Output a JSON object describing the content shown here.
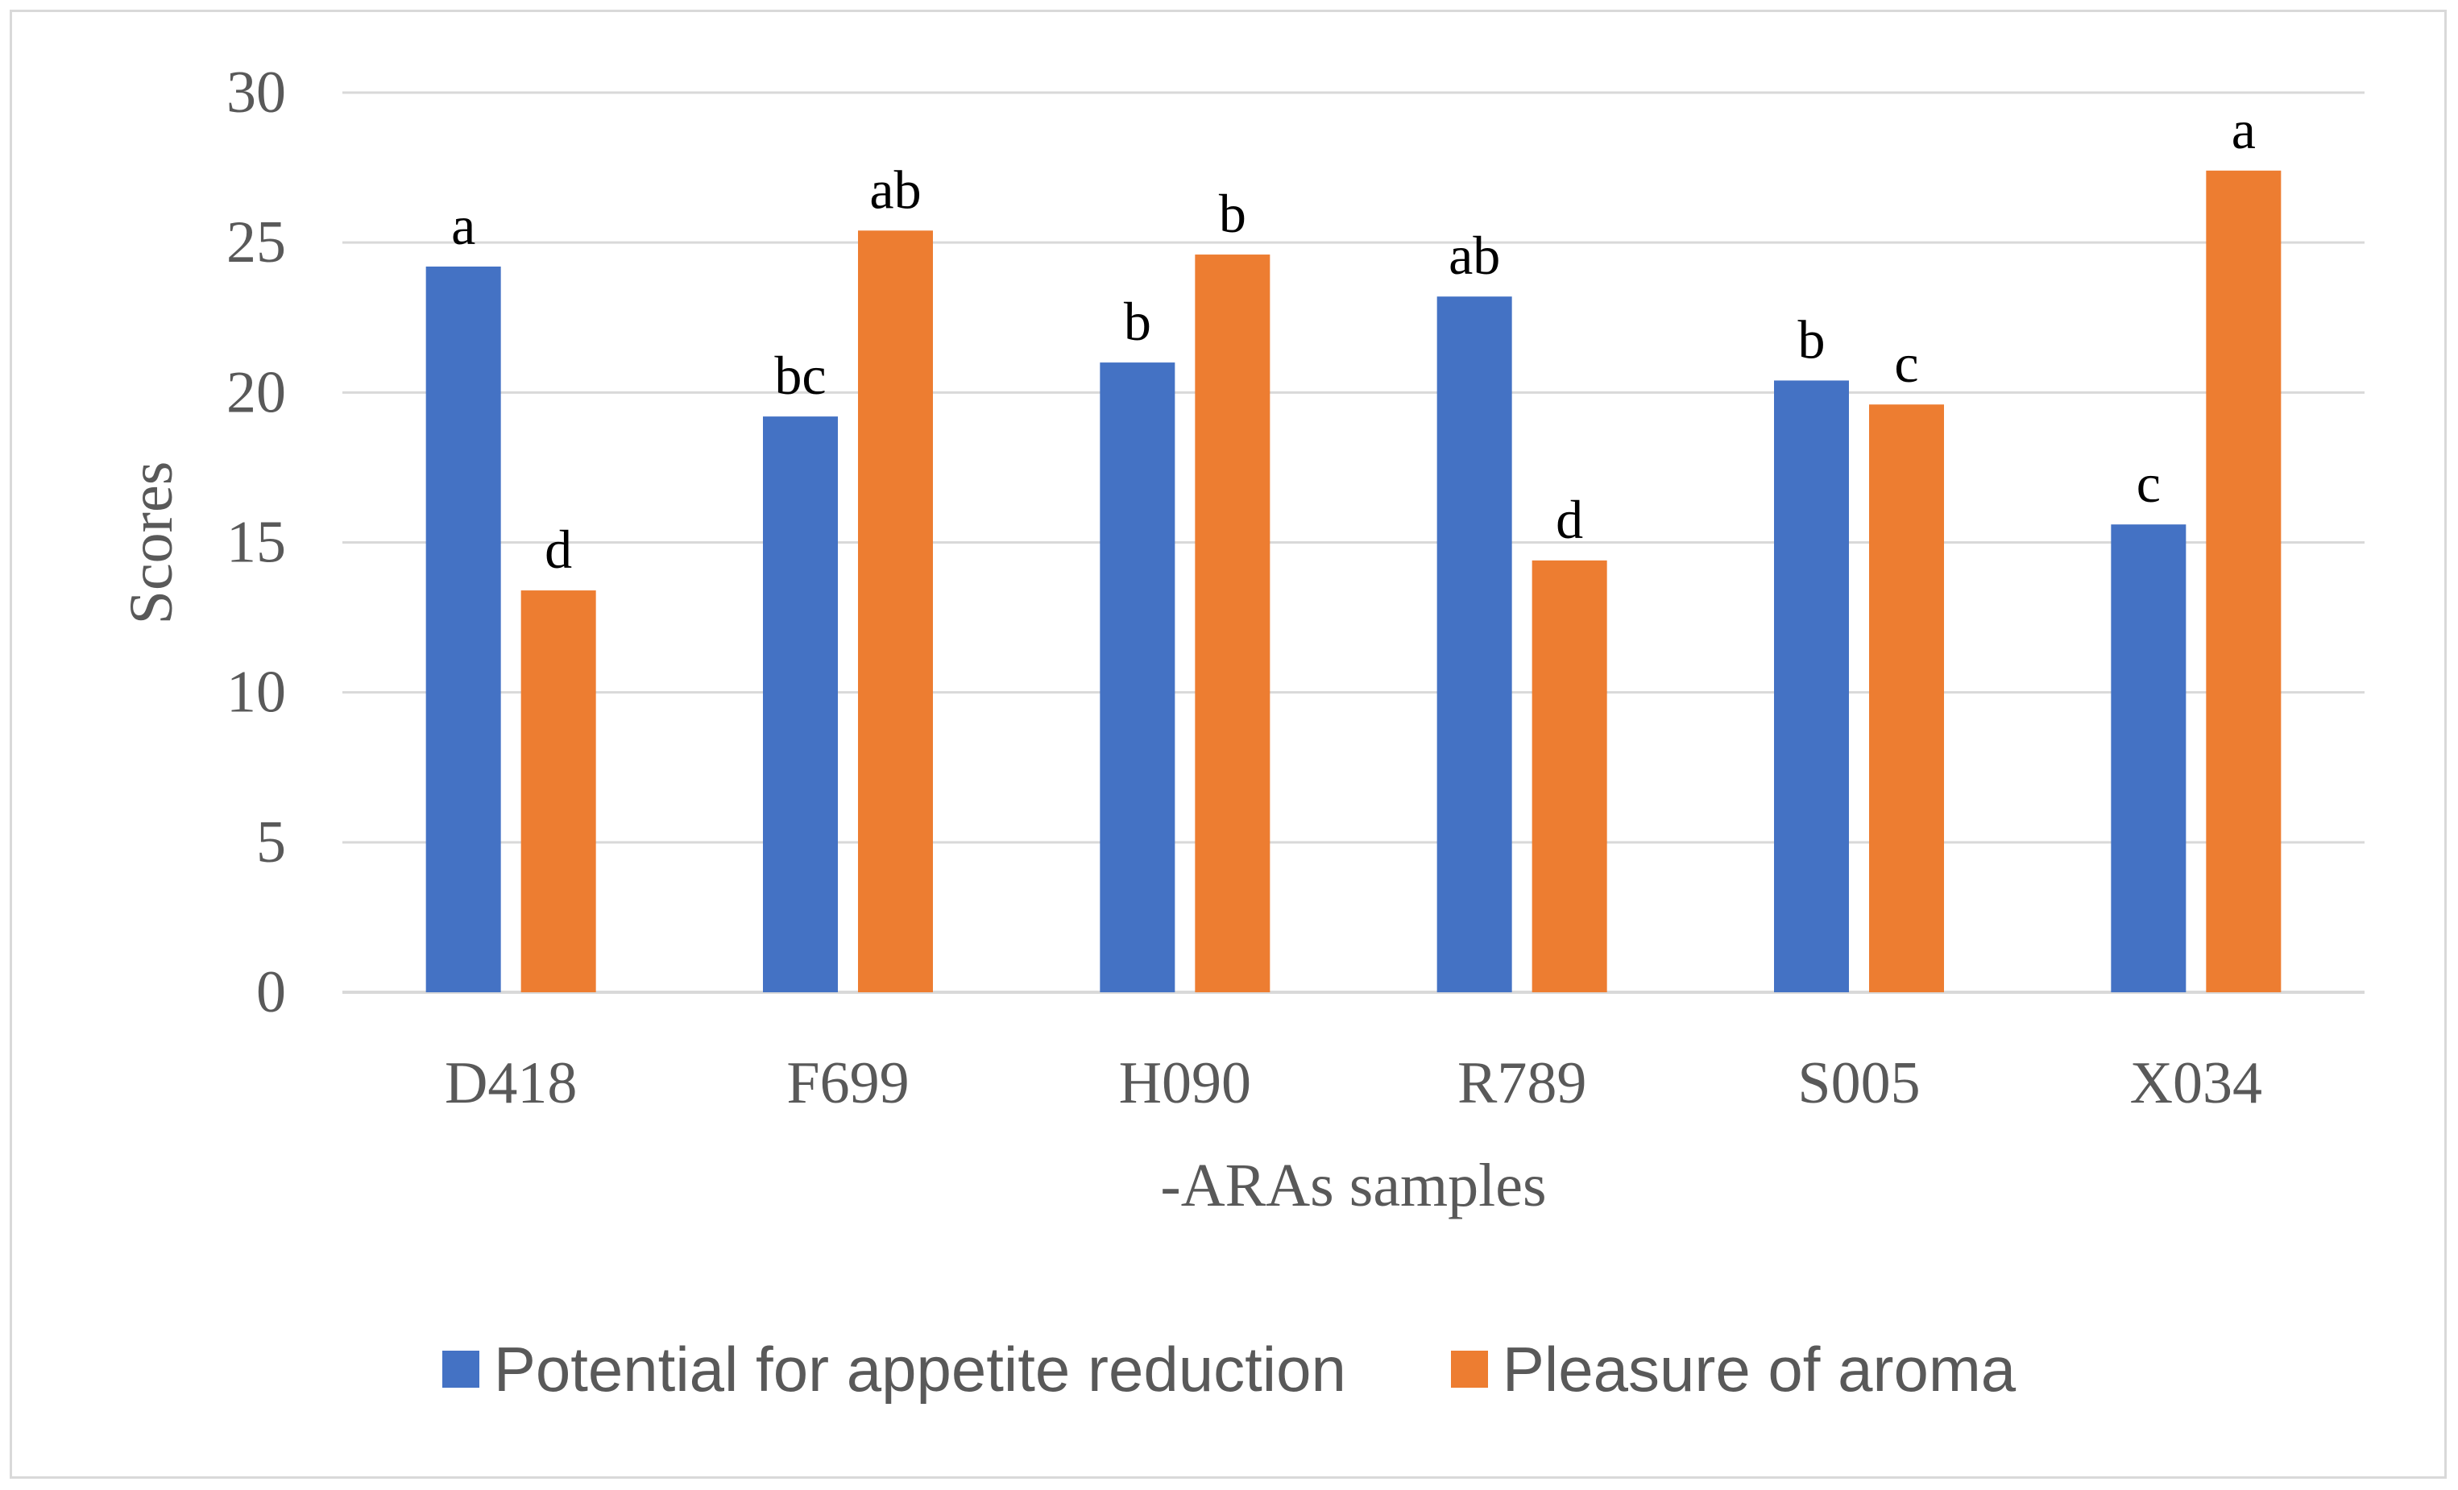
{
  "chart_data": {
    "type": "bar",
    "categories": [
      "D418",
      "F699",
      "H090",
      "R789",
      "S005",
      "X034"
    ],
    "series": [
      {
        "name": "Potential for appetite reduction",
        "color": "#4472C4",
        "values": [
          24.2,
          19.2,
          21.0,
          23.2,
          20.4,
          15.6
        ],
        "labels": [
          "a",
          "bc",
          "b",
          "ab",
          "b",
          "c"
        ]
      },
      {
        "name": "Pleasure of aroma",
        "color": "#ED7D31",
        "values": [
          13.4,
          25.4,
          24.6,
          14.4,
          19.6,
          27.4
        ],
        "labels": [
          "d",
          "ab",
          "b",
          "d",
          "c",
          "a"
        ]
      }
    ],
    "title": "",
    "xlabel": "-ARAs samples",
    "ylabel": "Scores",
    "ylim": [
      0,
      30
    ],
    "yticks": [
      "0",
      "5",
      "10",
      "15",
      "20",
      "25",
      "30"
    ],
    "grid": true,
    "legend_position": "bottom"
  }
}
